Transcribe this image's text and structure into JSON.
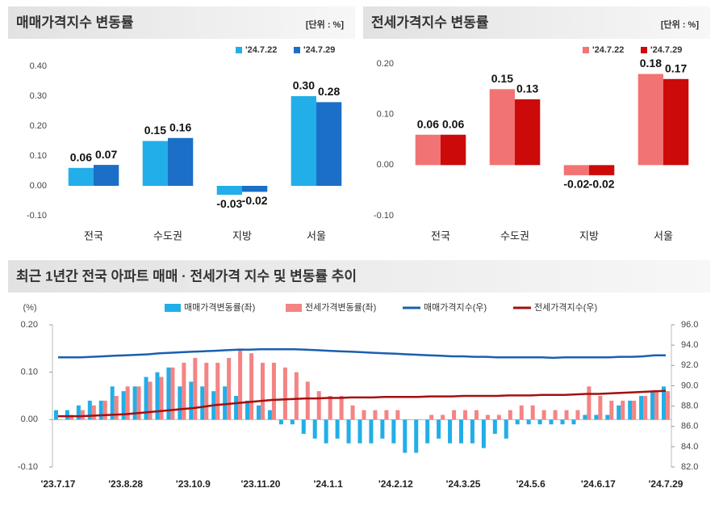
{
  "chart_data": [
    {
      "type": "bar",
      "title": "매매가격지수 변동률",
      "unit": "[단위 : %]",
      "categories": [
        "전국",
        "수도권",
        "지방",
        "서울"
      ],
      "series": [
        {
          "name": "'24.7.22",
          "color": "#22aee8",
          "values": [
            0.06,
            0.15,
            -0.03,
            0.3
          ],
          "value_labels": [
            "0.06",
            "0.15",
            "-0.03",
            "0.30"
          ]
        },
        {
          "name": "'24.7.29",
          "color": "#1b6fc6",
          "values": [
            0.07,
            0.16,
            -0.02,
            0.28
          ],
          "value_labels": [
            "0.07",
            "0.16",
            "-0.02",
            "0.28"
          ]
        }
      ],
      "ylim": [
        -0.1,
        0.4
      ],
      "yticks": [
        {
          "value": -0.1,
          "label": "-0.10"
        },
        {
          "value": 0,
          "label": "0.00"
        },
        {
          "value": 0.1,
          "label": "0.10"
        },
        {
          "value": 0.2,
          "label": "0.20"
        },
        {
          "value": 0.3,
          "label": "0.30"
        },
        {
          "value": 0.4,
          "label": "0.40"
        }
      ],
      "grid": false,
      "legend": "top-right"
    },
    {
      "type": "bar",
      "title": "전세가격지수 변동률",
      "unit": "[단위 : %]",
      "categories": [
        "전국",
        "수도권",
        "지방",
        "서울"
      ],
      "series": [
        {
          "name": "'24.7.22",
          "color": "#f27373",
          "values": [
            0.06,
            0.15,
            -0.02,
            0.18
          ],
          "value_labels": [
            "0.06",
            "0.15",
            "-0.02",
            "0.18"
          ]
        },
        {
          "name": "'24.7.29",
          "color": "#cc0a0a",
          "values": [
            0.06,
            0.13,
            -0.02,
            0.17
          ],
          "value_labels": [
            "0.06",
            "0.13",
            "-0.02",
            "0.17"
          ]
        }
      ],
      "ylim": [
        -0.1,
        0.2
      ],
      "yticks": [
        {
          "value": -0.1,
          "label": "-0.10"
        },
        {
          "value": 0,
          "label": "0.00"
        },
        {
          "value": 0.1,
          "label": "0.10"
        },
        {
          "value": 0.2,
          "label": "0.20"
        }
      ],
      "grid": false,
      "legend": "top-right"
    },
    {
      "type": "combo",
      "title": "최근 1년간 전국 아파트 매매 · 전세가격 지수 및 변동률 추이",
      "ylabel": "(%)",
      "categories": [
        "'23.7.17",
        null,
        null,
        null,
        null,
        null,
        "'23.8.28",
        null,
        null,
        null,
        null,
        null,
        "'23.10.9",
        null,
        null,
        null,
        null,
        null,
        "'23.11.20",
        null,
        null,
        null,
        null,
        null,
        "'24.1.1",
        null,
        null,
        null,
        null,
        null,
        "'24.2.12",
        null,
        null,
        null,
        null,
        null,
        "'24.3.25",
        null,
        null,
        null,
        null,
        null,
        "'24.5.6",
        null,
        null,
        null,
        null,
        null,
        "'24.6.17",
        null,
        null,
        null,
        null,
        null,
        "'24.7.29"
      ],
      "series": [
        {
          "name": "매매가격변동률(좌)",
          "type": "bar",
          "color": "#22aee8",
          "values": [
            0.02,
            0.02,
            0.03,
            0.04,
            0.04,
            0.07,
            0.06,
            0.07,
            0.09,
            0.1,
            0.11,
            0.07,
            0.08,
            0.07,
            0.06,
            0.07,
            0.05,
            0.04,
            0.03,
            0.02,
            -0.01,
            -0.01,
            -0.03,
            -0.04,
            -0.05,
            -0.04,
            -0.05,
            -0.05,
            -0.05,
            -0.04,
            -0.05,
            -0.07,
            -0.07,
            -0.05,
            -0.04,
            -0.05,
            -0.05,
            -0.05,
            -0.06,
            -0.03,
            -0.04,
            -0.01,
            -0.01,
            -0.01,
            -0.01,
            -0.01,
            -0.01,
            0.01,
            0.01,
            0.01,
            0.03,
            0.04,
            0.05,
            0.06,
            0.07
          ]
        },
        {
          "name": "전세가격변동률(좌)",
          "type": "bar",
          "color": "#f48484",
          "values": [
            0.0,
            0.01,
            0.02,
            0.03,
            0.04,
            0.05,
            0.07,
            0.07,
            0.08,
            0.09,
            0.11,
            0.12,
            0.13,
            0.12,
            0.12,
            0.13,
            0.15,
            0.14,
            0.12,
            0.12,
            0.11,
            0.1,
            0.08,
            0.06,
            0.05,
            0.05,
            0.03,
            0.02,
            0.02,
            0.02,
            0.02,
            0.0,
            0.0,
            0.01,
            0.01,
            0.02,
            0.02,
            0.02,
            0.01,
            0.01,
            0.02,
            0.03,
            0.03,
            0.02,
            0.02,
            0.02,
            0.02,
            0.07,
            0.05,
            0.04,
            0.04,
            0.04,
            0.05,
            0.06,
            0.06
          ]
        },
        {
          "name": "매매가격지수(우)",
          "type": "line",
          "axis": "y2",
          "color": "#1a5fb0",
          "values": [
            92.8,
            92.8,
            92.8,
            92.85,
            92.9,
            92.95,
            93.0,
            93.05,
            93.1,
            93.2,
            93.25,
            93.3,
            93.35,
            93.4,
            93.45,
            93.5,
            93.55,
            93.55,
            93.6,
            93.6,
            93.6,
            93.6,
            93.55,
            93.5,
            93.45,
            93.4,
            93.35,
            93.3,
            93.25,
            93.2,
            93.15,
            93.1,
            93.05,
            93.0,
            92.95,
            92.9,
            92.9,
            92.85,
            92.85,
            92.8,
            92.8,
            92.8,
            92.8,
            92.8,
            92.75,
            92.8,
            92.8,
            92.8,
            92.8,
            92.8,
            92.85,
            92.85,
            92.9,
            93.0,
            93.0
          ]
        },
        {
          "name": "전세가격지수(우)",
          "type": "line",
          "axis": "y2",
          "color": "#a31010",
          "values": [
            87.0,
            87.0,
            87.0,
            87.05,
            87.1,
            87.15,
            87.2,
            87.3,
            87.4,
            87.5,
            87.6,
            87.7,
            87.8,
            87.95,
            88.1,
            88.2,
            88.3,
            88.4,
            88.5,
            88.6,
            88.65,
            88.7,
            88.75,
            88.75,
            88.8,
            88.8,
            88.85,
            88.85,
            88.85,
            88.9,
            88.9,
            88.9,
            88.9,
            88.95,
            88.95,
            88.95,
            89.0,
            89.0,
            89.0,
            89.0,
            89.05,
            89.05,
            89.05,
            89.1,
            89.1,
            89.1,
            89.15,
            89.2,
            89.2,
            89.25,
            89.3,
            89.35,
            89.4,
            89.45,
            89.5
          ]
        }
      ],
      "ylim": [
        -0.1,
        0.2
      ],
      "yticks": [
        {
          "value": -0.1,
          "label": "-0.10"
        },
        {
          "value": 0,
          "label": "0.00"
        },
        {
          "value": 0.1,
          "label": "0.10"
        },
        {
          "value": 0.2,
          "label": "0.20"
        }
      ],
      "y2lim": [
        82,
        96
      ],
      "y2ticks": [
        {
          "value": 82,
          "label": "82.0"
        },
        {
          "value": 84,
          "label": "84.0"
        },
        {
          "value": 86,
          "label": "86.0"
        },
        {
          "value": 88,
          "label": "88.0"
        },
        {
          "value": 90,
          "label": "90.0"
        },
        {
          "value": 92,
          "label": "92.0"
        },
        {
          "value": 94,
          "label": "94.0"
        },
        {
          "value": 96,
          "label": "96.0"
        }
      ],
      "grid": false,
      "legend": "top"
    }
  ]
}
